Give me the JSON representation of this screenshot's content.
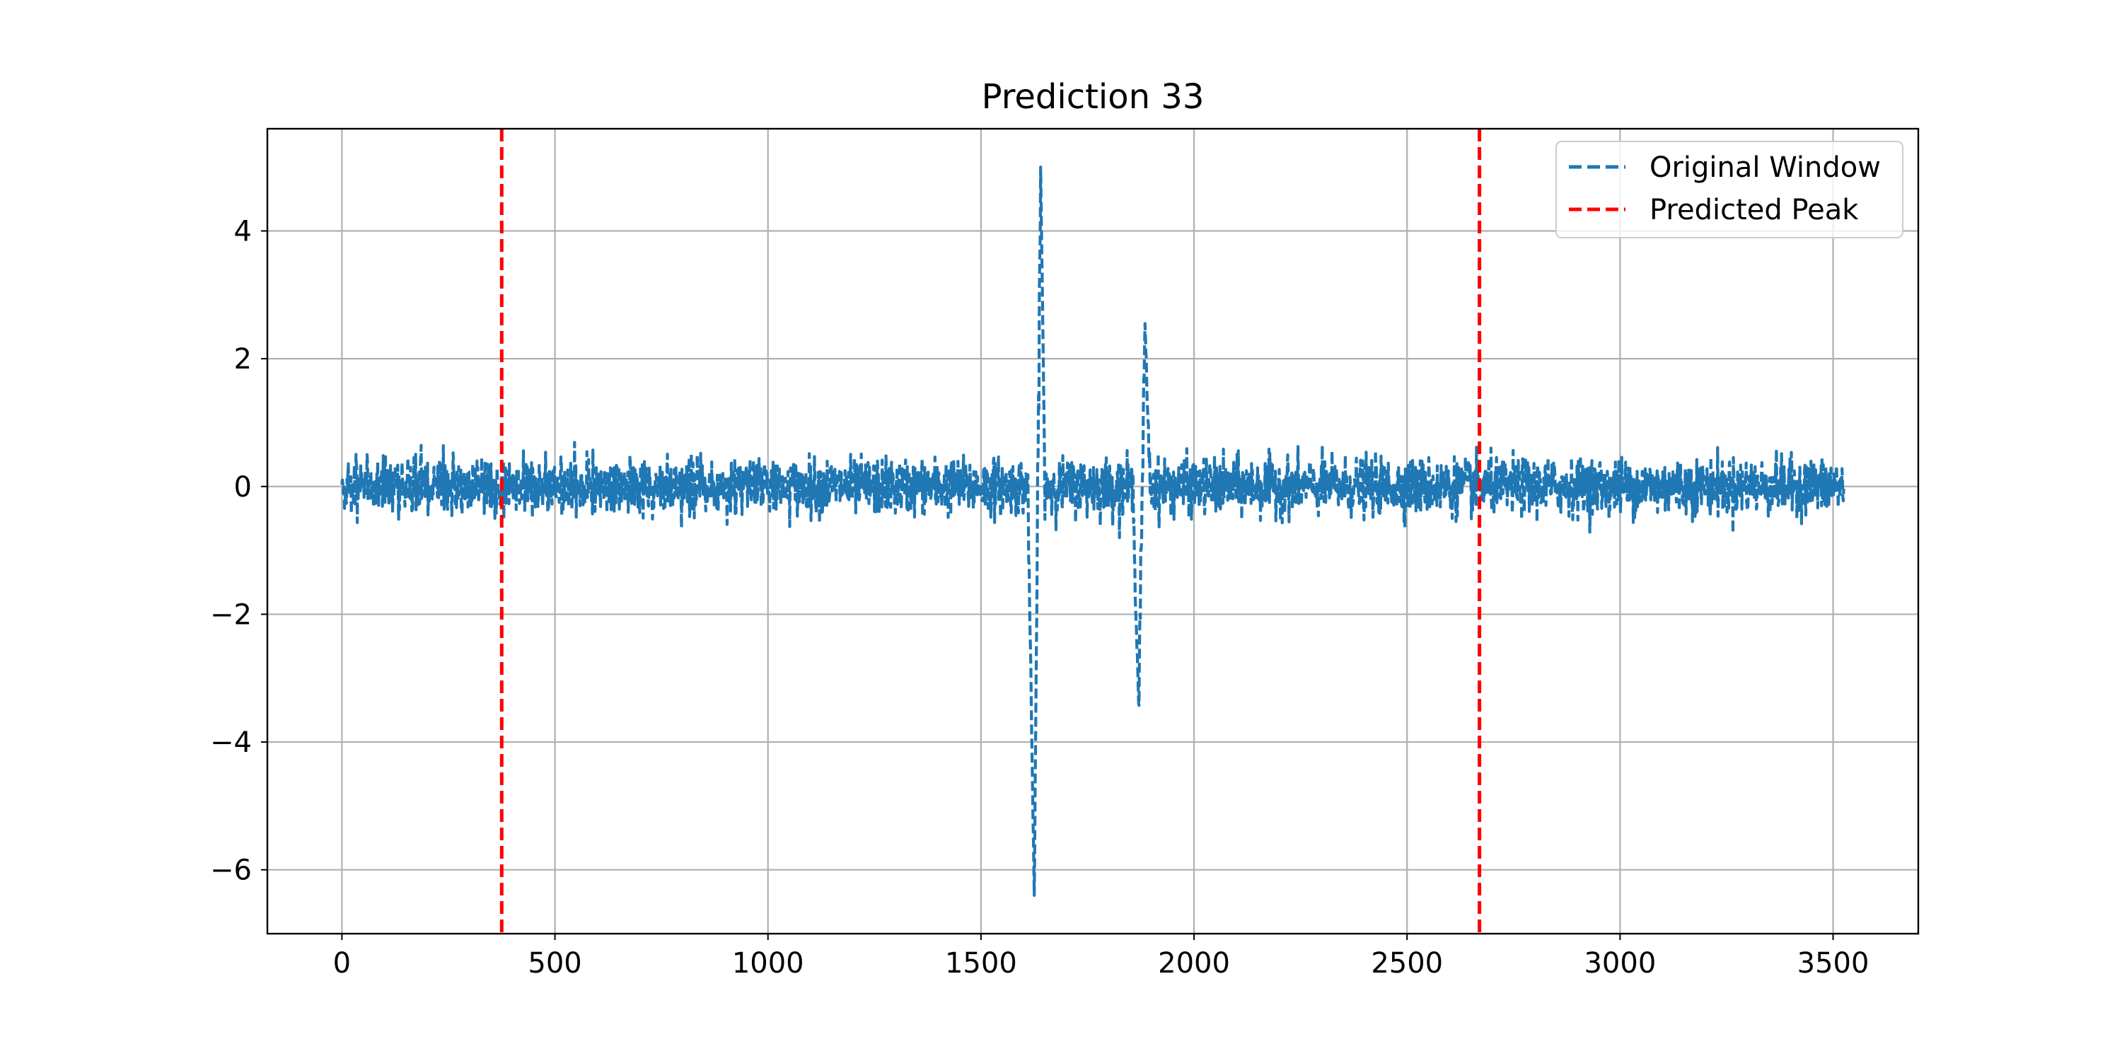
{
  "chart_data": {
    "type": "line",
    "title": "Prediction 33",
    "xlabel": "",
    "ylabel": "",
    "xlim": [
      -175,
      3700
    ],
    "ylim": [
      -7,
      5.6
    ],
    "x_ticks": [
      0,
      500,
      1000,
      1500,
      2000,
      2500,
      3000,
      3500
    ],
    "x_tick_labels": [
      "0",
      "500",
      "1000",
      "1500",
      "2000",
      "2500",
      "3000",
      "3500"
    ],
    "y_ticks": [
      -6,
      -4,
      -2,
      0,
      2,
      4
    ],
    "y_tick_labels": [
      "−6",
      "−4",
      "−2",
      "0",
      "2",
      "4"
    ],
    "grid": true,
    "legend_position": "top-right",
    "series": [
      {
        "name": "Original Window",
        "color": "#1f77b4",
        "line_style": "dashed",
        "x_range": [
          0,
          3525
        ],
        "baseline_noise_range": [
          -0.8,
          0.75
        ],
        "features": [
          {
            "x": 1625,
            "y": -6.4
          },
          {
            "x": 1640,
            "y": 5.0
          },
          {
            "x": 1870,
            "y": -3.4
          },
          {
            "x": 1885,
            "y": 2.55
          }
        ]
      }
    ],
    "vertical_lines": [
      {
        "name": "Predicted Peak",
        "color": "#ff0000",
        "line_style": "dashed",
        "x": 375
      },
      {
        "name": "Predicted Peak",
        "color": "#ff0000",
        "line_style": "dashed",
        "x": 2670
      }
    ],
    "legend": [
      {
        "label": "Original Window",
        "color": "#1f77b4",
        "line_style": "dashed"
      },
      {
        "label": "Predicted Peak",
        "color": "#ff0000",
        "line_style": "dashed"
      }
    ]
  }
}
